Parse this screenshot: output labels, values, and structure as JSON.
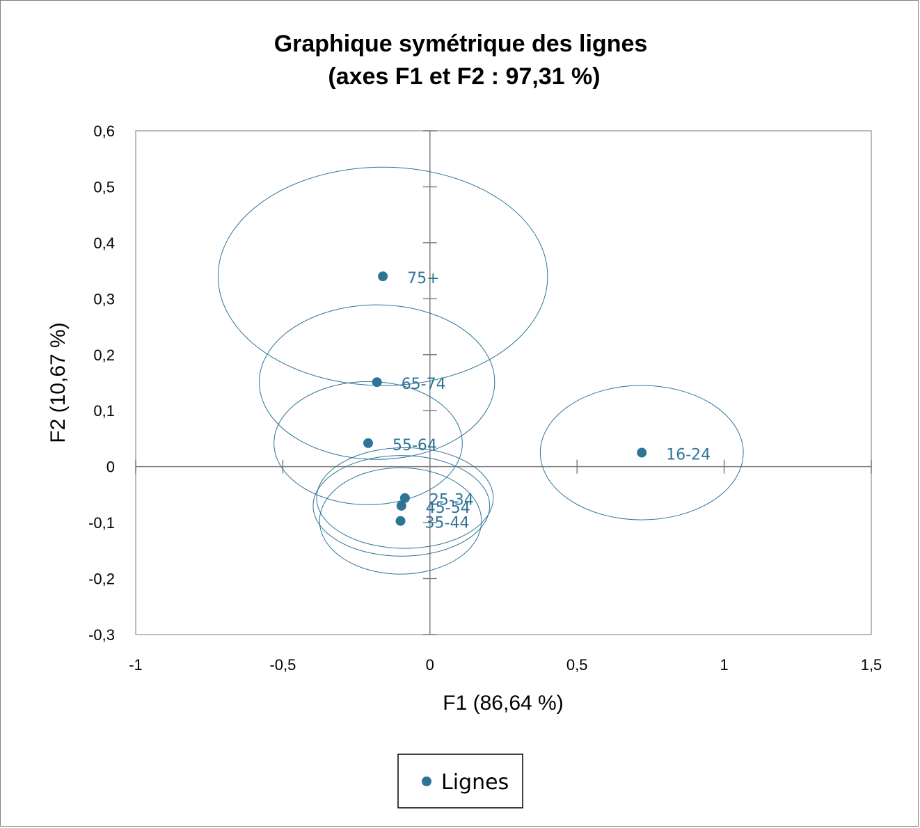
{
  "chart_data": {
    "type": "scatter",
    "title": "Graphique symétrique des lignes",
    "subtitle": "(axes F1 et F2 : 97,31 %)",
    "xlabel": "F1 (86,64 %)",
    "ylabel": "F2 (10,67 %)",
    "xlim": [
      -1,
      1.5
    ],
    "ylim": [
      -0.3,
      0.6
    ],
    "x_ticks": [
      "-1",
      "-0,5",
      "0",
      "0,5",
      "1",
      "1,5"
    ],
    "x_tick_values": [
      -1,
      -0.5,
      0,
      0.5,
      1,
      1.5
    ],
    "y_ticks": [
      "0,6",
      "0,5",
      "0,4",
      "0,3",
      "0,2",
      "0,1",
      "0",
      "-0,1",
      "-0,2",
      "-0,3"
    ],
    "y_tick_values": [
      0.6,
      0.5,
      0.4,
      0.3,
      0.2,
      0.1,
      0,
      -0.1,
      -0.2,
      -0.3
    ],
    "grid": false,
    "legend_position": "bottom",
    "series": [
      {
        "name": "Lignes",
        "color": "#2e7497",
        "points": [
          {
            "label": "75+",
            "x": -0.16,
            "y": 0.34,
            "ellipse_rx": 0.56,
            "ellipse_ry": 0.195
          },
          {
            "label": "65-74",
            "x": -0.18,
            "y": 0.151,
            "ellipse_rx": 0.4,
            "ellipse_ry": 0.138
          },
          {
            "label": "55-64",
            "x": -0.21,
            "y": 0.042,
            "ellipse_rx": 0.32,
            "ellipse_ry": 0.11
          },
          {
            "label": "16-24",
            "x": 0.72,
            "y": 0.025,
            "ellipse_rx": 0.345,
            "ellipse_ry": 0.12
          },
          {
            "label": "25-34",
            "x": -0.085,
            "y": -0.056,
            "ellipse_rx": 0.3,
            "ellipse_ry": 0.09
          },
          {
            "label": "45-54",
            "x": -0.097,
            "y": -0.07,
            "ellipse_rx": 0.3,
            "ellipse_ry": 0.09
          },
          {
            "label": "35-44",
            "x": -0.1,
            "y": -0.097,
            "ellipse_rx": 0.275,
            "ellipse_ry": 0.095
          }
        ]
      }
    ]
  }
}
